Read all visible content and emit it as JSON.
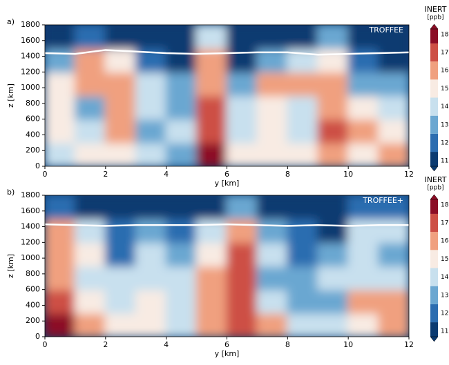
{
  "chart_data": [
    {
      "type": "heatmap",
      "panel_label": "a)",
      "annotation": "TROFFEE",
      "x_label": "y [km]",
      "y_label": "z [km]",
      "xlim": [
        0,
        12
      ],
      "ylim": [
        0,
        1800
      ],
      "xticks": [
        0,
        2,
        4,
        6,
        8,
        10,
        12
      ],
      "yticks": [
        0,
        200,
        400,
        600,
        800,
        1000,
        1200,
        1400,
        1600,
        1800
      ],
      "x_edges": [
        0,
        1,
        2,
        3,
        4,
        5,
        6,
        7,
        8,
        9,
        10,
        11,
        12
      ],
      "y_edges": [
        0,
        300,
        600,
        900,
        1200,
        1500,
        1800
      ],
      "values": [
        [
          14,
          15,
          15,
          14,
          13,
          18,
          15,
          15,
          15,
          16,
          15,
          16
        ],
        [
          15,
          14,
          16,
          13,
          14,
          17,
          14,
          15,
          14,
          17,
          16,
          15
        ],
        [
          15,
          13,
          16,
          14,
          13,
          17,
          14,
          15,
          14,
          16,
          15,
          14
        ],
        [
          15,
          16,
          16,
          14,
          13,
          16,
          13,
          16,
          16,
          16,
          13,
          13
        ],
        [
          13,
          16,
          15,
          12,
          11,
          16,
          11,
          13,
          14,
          15,
          12,
          11
        ],
        [
          11,
          12,
          11,
          11,
          11,
          14,
          11,
          11,
          11,
          13,
          11,
          11
        ]
      ],
      "line": {
        "color": "#ffffff",
        "x": [
          0,
          1,
          2,
          3,
          4,
          5,
          6,
          7,
          8,
          9,
          10,
          11,
          12
        ],
        "values": [
          1440,
          1430,
          1480,
          1460,
          1440,
          1430,
          1440,
          1450,
          1450,
          1420,
          1430,
          1440,
          1450
        ]
      },
      "colorbar": {
        "label": "INERT",
        "unit": "[ppb]",
        "lim": [
          10.7,
          18.3
        ],
        "ticks": [
          11,
          12,
          13,
          14,
          15,
          16,
          17,
          18
        ],
        "colors": [
          "#0b3b71",
          "#2c6db0",
          "#6ba7d1",
          "#c8e0ee",
          "#f8ebe3",
          "#f0a07f",
          "#cd4f45",
          "#8c0d25"
        ]
      }
    },
    {
      "type": "heatmap",
      "panel_label": "b)",
      "annotation": "TROFFEE+",
      "x_label": "y [km]",
      "y_label": "z [km]",
      "xlim": [
        0,
        12
      ],
      "ylim": [
        0,
        1800
      ],
      "xticks": [
        0,
        2,
        4,
        6,
        8,
        10,
        12
      ],
      "yticks": [
        0,
        200,
        400,
        600,
        800,
        1000,
        1200,
        1400,
        1600,
        1800
      ],
      "x_edges": [
        0,
        1,
        2,
        3,
        4,
        5,
        6,
        7,
        8,
        9,
        10,
        11,
        12
      ],
      "y_edges": [
        0,
        300,
        600,
        900,
        1200,
        1500,
        1800
      ],
      "values": [
        [
          18,
          16,
          15,
          15,
          14,
          16,
          17,
          16,
          14,
          14,
          15,
          16
        ],
        [
          17,
          15,
          14,
          15,
          14,
          16,
          17,
          14,
          13,
          13,
          16,
          16
        ],
        [
          16,
          14,
          14,
          14,
          14,
          16,
          17,
          13,
          13,
          14,
          14,
          14
        ],
        [
          16,
          15,
          12,
          14,
          13,
          15,
          17,
          14,
          12,
          13,
          14,
          13
        ],
        [
          16,
          14,
          12,
          13,
          12,
          14,
          16,
          13,
          12,
          11,
          14,
          14
        ],
        [
          12,
          11,
          11,
          11,
          11,
          11,
          13,
          11,
          11,
          11,
          12,
          12
        ]
      ],
      "line": {
        "color": "#ffffff",
        "x": [
          0,
          1,
          2,
          3,
          4,
          5,
          6,
          7,
          8,
          9,
          10,
          11,
          12
        ],
        "values": [
          1430,
          1420,
          1410,
          1420,
          1420,
          1420,
          1430,
          1420,
          1410,
          1420,
          1410,
          1420,
          1420
        ]
      },
      "colorbar": {
        "label": "INERT",
        "unit": "[ppb]",
        "lim": [
          10.7,
          18.3
        ],
        "ticks": [
          11,
          12,
          13,
          14,
          15,
          16,
          17,
          18
        ],
        "colors": [
          "#0b3b71",
          "#2c6db0",
          "#6ba7d1",
          "#c8e0ee",
          "#f8ebe3",
          "#f0a07f",
          "#cd4f45",
          "#8c0d25"
        ]
      }
    }
  ]
}
